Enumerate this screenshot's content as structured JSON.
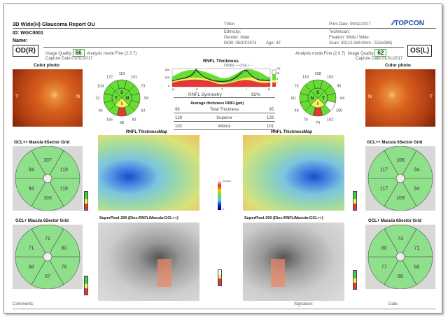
{
  "header": {
    "title": "3D Wide(H) Glaucoma Report OU",
    "device": "Triton",
    "print_date": "Print Date: 09/11/2017",
    "logo": "TOPCON",
    "id": "ID: WGC0001",
    "name": "Name:",
    "ethnicity": "Ethnicity:",
    "gender": "Gender: Male",
    "dob": "DOB: 05/10/1974",
    "age": "Age: 42",
    "technician": "Technician:",
    "fixation": "Fixation: Wide / Wide",
    "scan": "Scan: 3D(12.0x9.0mm - 512x266)"
  },
  "od": {
    "label": "OD(R)",
    "iq_label": "Image Quality",
    "iq": "66",
    "mode": "Analysis mode:Fine (2.0.7)",
    "capture": "Capture Date:01/31/2017",
    "photo_label": "Color photo",
    "clock": [
      "110",
      "101",
      "73",
      "58",
      "63",
      "83",
      "68",
      "155",
      "96",
      "72",
      "104",
      "172"
    ],
    "clock_status": [
      "g",
      "g",
      "g",
      "g",
      "g",
      "g",
      "r",
      "g",
      "g",
      "g",
      "g",
      "g"
    ],
    "quad": [
      "S",
      "N",
      "I",
      "T"
    ],
    "quad_status": [
      "g",
      "g",
      "y",
      "g"
    ],
    "gclpp": [
      "107",
      "119",
      "118",
      "103",
      "94",
      "94"
    ],
    "gclp": [
      "71",
      "80",
      "78",
      "67",
      "68",
      "71"
    ]
  },
  "os": {
    "label": "OS(L)",
    "iq_label": "Image Quality",
    "iq": "62",
    "mode": "Analysis mode:Fine (2.0.7)",
    "capture": "Capture Date:01/31/2017",
    "photo_label": "Color photo",
    "clock": [
      "108",
      "163",
      "95",
      "64",
      "106",
      "152",
      "74",
      "78",
      "49",
      "60",
      "75",
      "118"
    ],
    "clock_status": [
      "g",
      "g",
      "g",
      "g",
      "w",
      "g",
      "r",
      "g",
      "g",
      "g",
      "g",
      "g"
    ],
    "quad": [
      "S",
      "T",
      "I",
      "N"
    ],
    "quad_status": [
      "g",
      "g",
      "y",
      "g"
    ],
    "gclpp": [
      "106",
      "94",
      "94",
      "103",
      "117",
      "117"
    ],
    "gclp": [
      "73",
      "71",
      "69",
      "66",
      "77",
      "80"
    ]
  },
  "rnfl": {
    "title": "RNFL Thickness",
    "legend": "OD(R) —  OS(L) ···",
    "unit": "µm",
    "yticks": [
      "200",
      "100",
      "0"
    ],
    "xticks": [
      "N",
      "S",
      "T",
      "I",
      "N"
    ],
    "pct": [
      "(%)",
      "95",
      "5",
      "1"
    ],
    "symmetry_label": "RNFL Symmetry",
    "symmetry": "92%"
  },
  "avg": {
    "title": "Average thickness RNFL(µm)",
    "rows": [
      {
        "od": "96",
        "label": "Total Thickness",
        "os": "95"
      },
      {
        "od": "128",
        "label": "Superior",
        "os": "129"
      },
      {
        "od": "102",
        "label": "Inferior",
        "os": "101"
      }
    ]
  },
  "labels": {
    "map": "RNFL ThicknessMap",
    "superpixel": "SuperPixel-200 (Disc:RNFL/Macula:GCL++)",
    "gclpp": "GCL++ Macula 6Sector Grid",
    "gclp": "GCL+ Macula 6Sector Grid",
    "scale_top": "200µm",
    "scale_bot": "0",
    "T": "T",
    "N": "N"
  },
  "footer": {
    "comments": "Comments:",
    "signature": "Signature:",
    "date": "Date:"
  },
  "colors": {
    "green": "#66dd33",
    "yellow": "#f5f060",
    "red": "#e23838",
    "accent": "#1a4aa8"
  }
}
